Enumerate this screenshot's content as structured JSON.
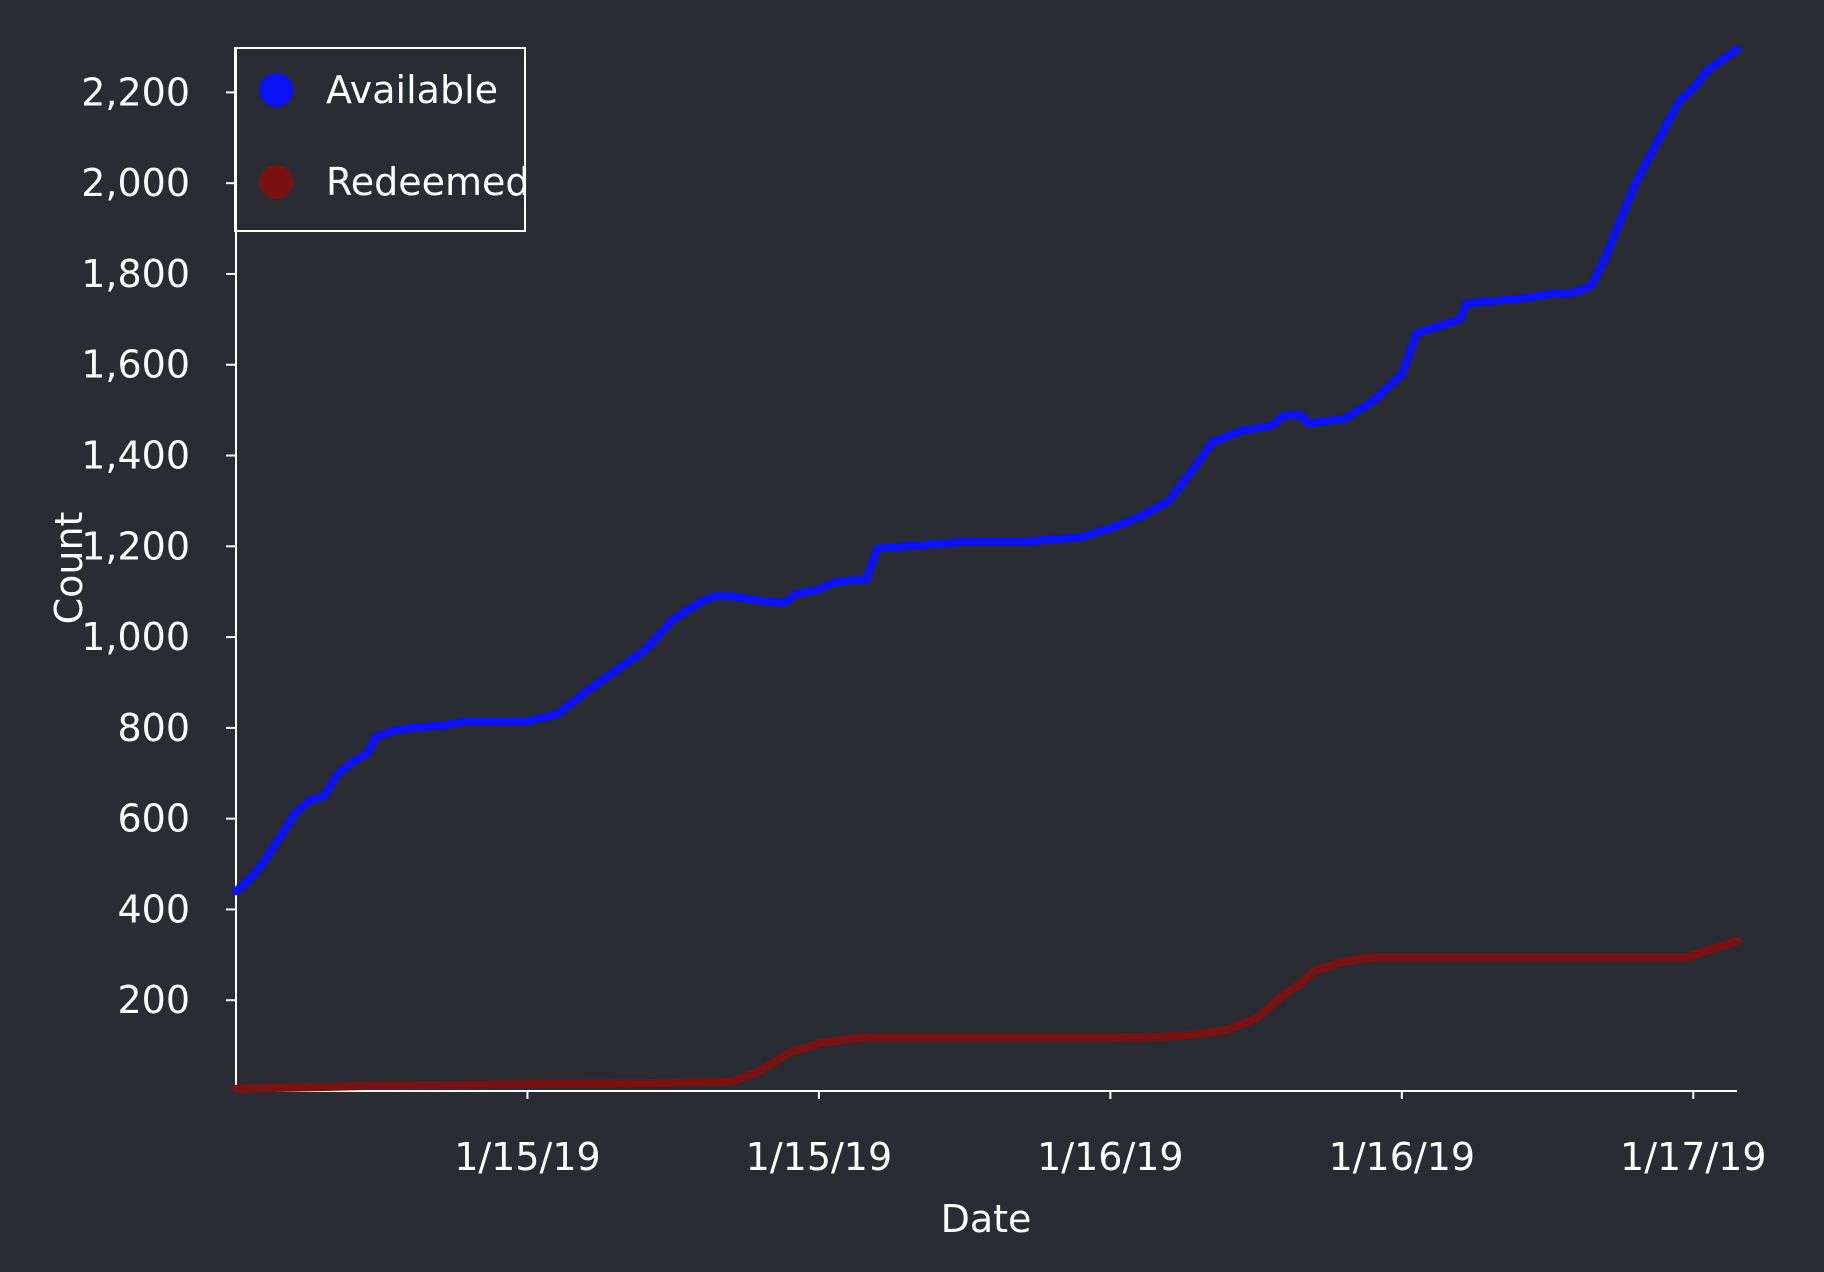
{
  "chart_data": {
    "type": "line",
    "title": "",
    "xlabel": "Date",
    "ylabel": "Count",
    "ylim": [
      0,
      2300
    ],
    "xlim": [
      0,
      5.15
    ],
    "y_ticks": [
      200,
      400,
      600,
      800,
      1000,
      1200,
      1400,
      1600,
      1800,
      2000,
      2200
    ],
    "y_tick_labels": [
      "200",
      "400",
      "600",
      "800",
      "1,000",
      "1,200",
      "1,400",
      "1,600",
      "1,800",
      "2,000",
      "2,200"
    ],
    "x_ticks": [
      1,
      2,
      3,
      4,
      5
    ],
    "x_tick_labels": [
      "1/15/19",
      "1/15/19",
      "1/16/19",
      "1/16/19",
      "1/17/19"
    ],
    "grid": false,
    "legend_position": "top-left",
    "colors": {
      "background": "#292c32",
      "axis": "#ffffff"
    },
    "series": [
      {
        "name": "Available",
        "color": "#0b12f5",
        "x": [
          0,
          0.05,
          0.1,
          0.15,
          0.2,
          0.25,
          0.3,
          0.35,
          0.4,
          0.45,
          0.48,
          0.5,
          0.55,
          0.6,
          0.7,
          0.8,
          0.9,
          1.0,
          1.1,
          1.2,
          1.3,
          1.4,
          1.5,
          1.6,
          1.64,
          1.7,
          1.8,
          1.88,
          1.92,
          2.0,
          2.05,
          2.1,
          2.16,
          2.2,
          2.3,
          2.5,
          2.7,
          2.9,
          3.0,
          3.1,
          3.2,
          3.3,
          3.35,
          3.45,
          3.5,
          3.55,
          3.6,
          3.65,
          3.68,
          3.72,
          3.8,
          3.9,
          4.0,
          4.05,
          4.1,
          4.2,
          4.22,
          4.3,
          4.4,
          4.5,
          4.6,
          4.65,
          4.7,
          4.75,
          4.8,
          4.85,
          4.9,
          4.95,
          5.0,
          5.05,
          5.15
        ],
        "y": [
          440,
          470,
          510,
          560,
          610,
          640,
          650,
          700,
          725,
          745,
          780,
          785,
          795,
          800,
          805,
          815,
          815,
          815,
          830,
          880,
          925,
          970,
          1040,
          1080,
          1090,
          1090,
          1080,
          1075,
          1095,
          1105,
          1120,
          1125,
          1125,
          1195,
          1200,
          1210,
          1210,
          1220,
          1240,
          1265,
          1300,
          1385,
          1430,
          1455,
          1460,
          1465,
          1490,
          1490,
          1470,
          1475,
          1480,
          1520,
          1580,
          1670,
          1680,
          1700,
          1735,
          1740,
          1745,
          1755,
          1760,
          1775,
          1840,
          1920,
          2000,
          2060,
          2120,
          2180,
          2210,
          2250,
          2295
        ]
      },
      {
        "name": "Redeemed",
        "color": "#7b1212",
        "x": [
          0,
          0.25,
          0.5,
          1.0,
          1.5,
          1.7,
          1.8,
          1.9,
          2.0,
          2.1,
          2.2,
          2.5,
          3.0,
          3.2,
          3.3,
          3.4,
          3.5,
          3.6,
          3.65,
          3.7,
          3.8,
          3.9,
          4.0,
          4.5,
          4.98,
          5.05,
          5.15
        ],
        "y": [
          5,
          8,
          12,
          15,
          18,
          20,
          45,
          85,
          105,
          115,
          118,
          118,
          118,
          120,
          125,
          135,
          160,
          215,
          235,
          265,
          285,
          295,
          295,
          295,
          295,
          310,
          330
        ]
      }
    ]
  }
}
